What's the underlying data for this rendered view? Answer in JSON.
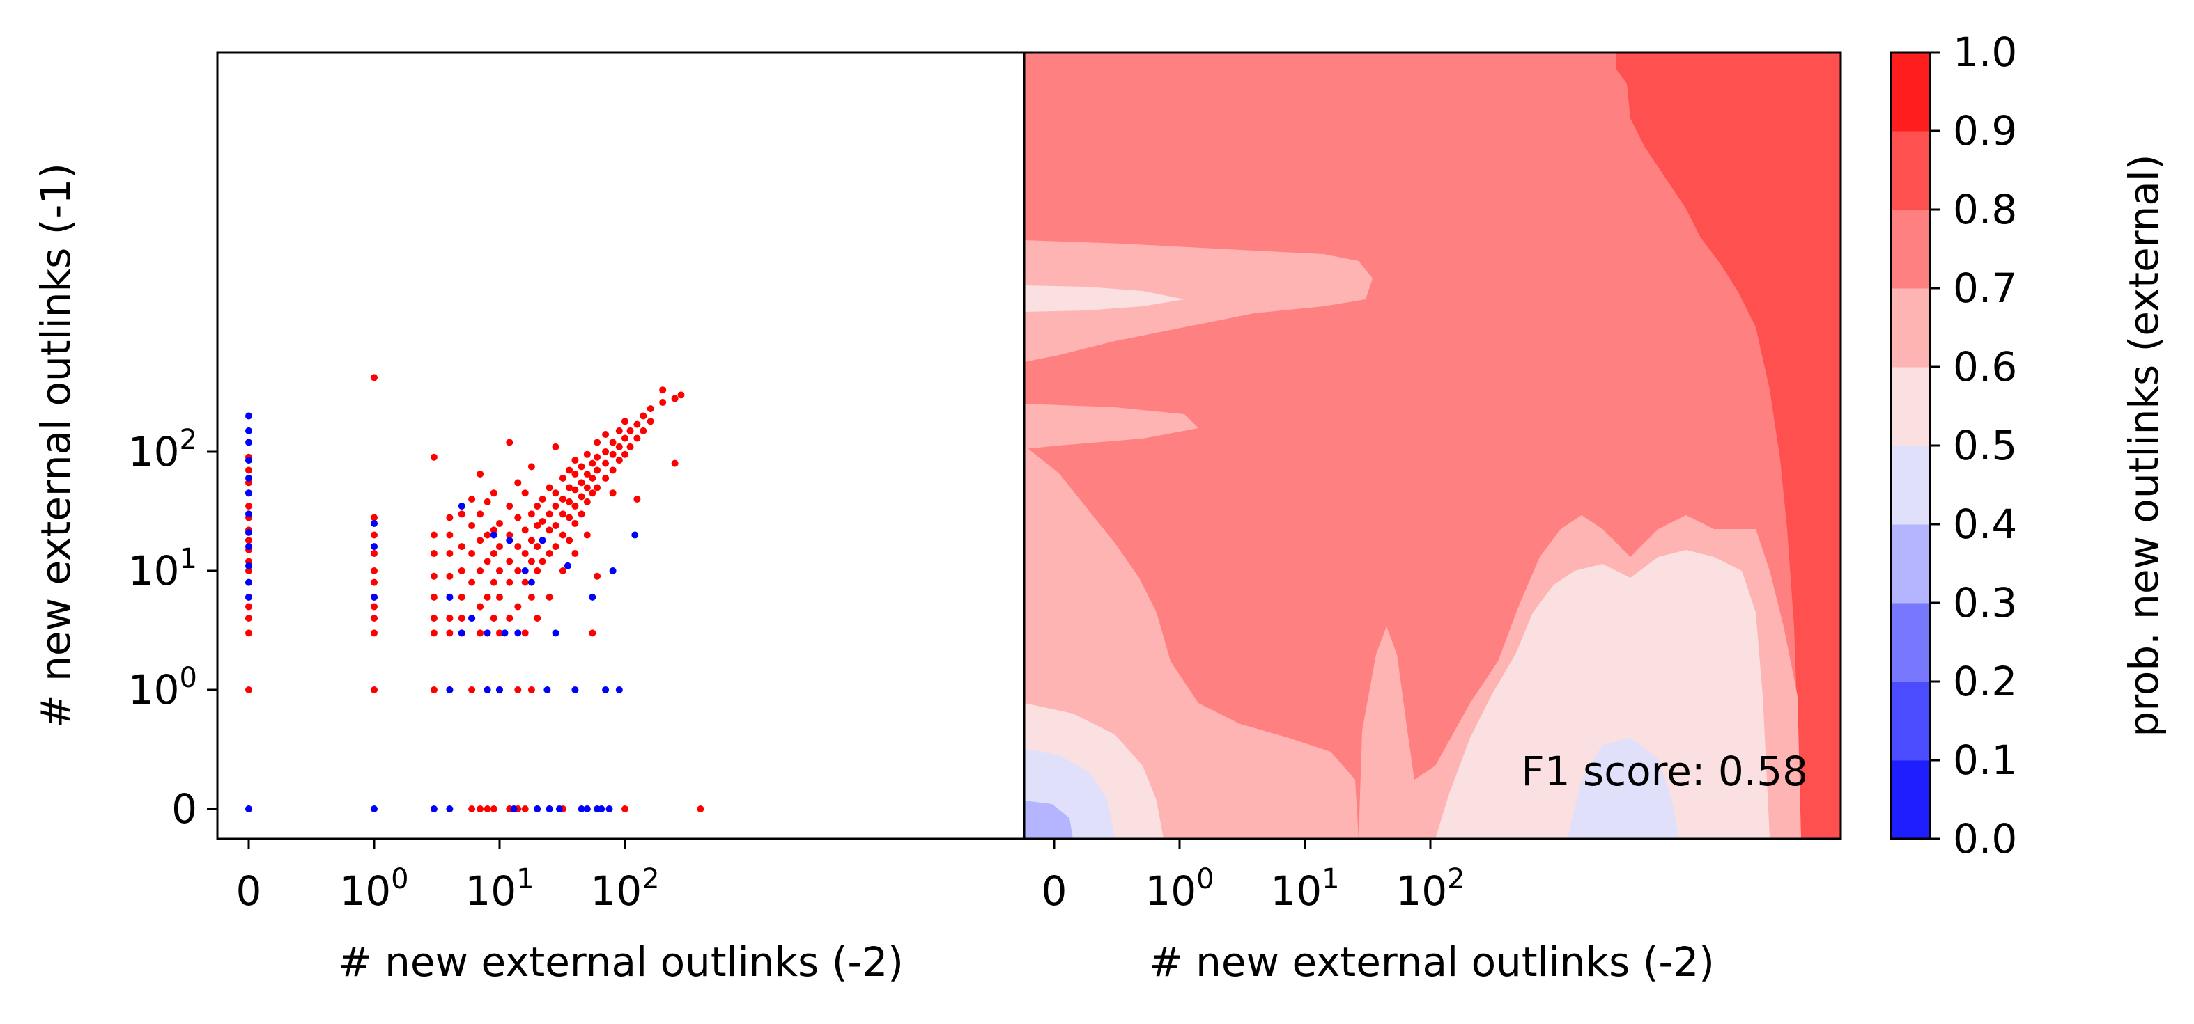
{
  "chart_data": [
    {
      "type": "scatter",
      "panel": "left",
      "xlabel": "# new external outlinks (-2)",
      "ylabel": "# new external outlinks (-1)",
      "x_scale": "symlog",
      "y_scale": "symlog",
      "x_ticks": [
        "0",
        "10^0",
        "10^1",
        "10^2"
      ],
      "y_ticks": [
        "0",
        "10^0",
        "10^1",
        "10^2"
      ],
      "xlim": [
        0,
        500
      ],
      "ylim": [
        0,
        450
      ],
      "grid": false,
      "series": [
        {
          "color": "#ff0000",
          "points": [
            [
              0,
              0
            ],
            [
              0,
              1
            ],
            [
              0,
              3
            ],
            [
              0,
              4
            ],
            [
              0,
              5
            ],
            [
              0,
              6
            ],
            [
              0,
              8
            ],
            [
              0,
              10
            ],
            [
              0,
              12
            ],
            [
              0,
              15
            ],
            [
              0,
              18
            ],
            [
              0,
              22
            ],
            [
              0,
              28
            ],
            [
              0,
              35
            ],
            [
              0,
              45
            ],
            [
              0,
              55
            ],
            [
              0,
              70
            ],
            [
              0,
              90
            ],
            [
              1,
              1
            ],
            [
              1,
              3
            ],
            [
              1,
              4
            ],
            [
              1,
              5
            ],
            [
              1,
              6
            ],
            [
              1,
              8
            ],
            [
              1,
              10
            ],
            [
              1,
              14
            ],
            [
              1,
              20
            ],
            [
              1,
              28
            ],
            [
              1,
              420
            ],
            [
              3,
              1
            ],
            [
              3,
              3
            ],
            [
              3,
              4
            ],
            [
              3,
              6
            ],
            [
              3,
              9
            ],
            [
              3,
              14
            ],
            [
              3,
              20
            ],
            [
              3,
              90
            ],
            [
              4,
              1
            ],
            [
              4,
              3
            ],
            [
              4,
              4
            ],
            [
              4,
              6
            ],
            [
              4,
              9
            ],
            [
              4,
              14
            ],
            [
              4,
              20
            ],
            [
              4,
              28
            ],
            [
              5,
              3
            ],
            [
              5,
              4
            ],
            [
              5,
              6
            ],
            [
              5,
              10
            ],
            [
              5,
              16
            ],
            [
              5,
              30
            ],
            [
              6,
              0
            ],
            [
              6,
              1
            ],
            [
              6,
              4
            ],
            [
              6,
              8
            ],
            [
              6,
              14
            ],
            [
              6,
              24
            ],
            [
              6,
              40
            ],
            [
              7,
              0
            ],
            [
              7,
              3
            ],
            [
              7,
              5
            ],
            [
              7,
              10
            ],
            [
              7,
              18
            ],
            [
              7,
              30
            ],
            [
              7,
              65
            ],
            [
              8,
              0
            ],
            [
              8,
              1
            ],
            [
              8,
              3
            ],
            [
              8,
              6
            ],
            [
              8,
              12
            ],
            [
              8,
              20
            ],
            [
              8,
              38
            ],
            [
              9,
              0
            ],
            [
              9,
              4
            ],
            [
              9,
              8
            ],
            [
              9,
              14
            ],
            [
              9,
              22
            ],
            [
              9,
              45
            ],
            [
              10,
              1
            ],
            [
              10,
              3
            ],
            [
              10,
              6
            ],
            [
              10,
              10
            ],
            [
              10,
              16
            ],
            [
              10,
              25
            ],
            [
              12,
              0
            ],
            [
              12,
              4
            ],
            [
              12,
              8
            ],
            [
              12,
              12
            ],
            [
              12,
              20
            ],
            [
              12,
              35
            ],
            [
              12,
              120
            ],
            [
              14,
              0
            ],
            [
              14,
              1
            ],
            [
              14,
              5
            ],
            [
              14,
              10
            ],
            [
              14,
              16
            ],
            [
              14,
              28
            ],
            [
              14,
              55
            ],
            [
              16,
              0
            ],
            [
              16,
              3
            ],
            [
              16,
              8
            ],
            [
              16,
              14
            ],
            [
              16,
              22
            ],
            [
              16,
              45
            ],
            [
              18,
              1
            ],
            [
              18,
              6
            ],
            [
              18,
              12
            ],
            [
              18,
              18
            ],
            [
              18,
              30
            ],
            [
              18,
              75
            ],
            [
              20,
              0
            ],
            [
              20,
              4
            ],
            [
              20,
              10
            ],
            [
              20,
              16
            ],
            [
              20,
              24
            ],
            [
              20,
              35
            ],
            [
              22,
              12
            ],
            [
              22,
              18
            ],
            [
              22,
              26
            ],
            [
              22,
              40
            ],
            [
              25,
              0
            ],
            [
              25,
              6
            ],
            [
              25,
              14
            ],
            [
              25,
              22
            ],
            [
              25,
              30
            ],
            [
              25,
              50
            ],
            [
              28,
              16
            ],
            [
              28,
              24
            ],
            [
              28,
              35
            ],
            [
              28,
              45
            ],
            [
              28,
              110
            ],
            [
              32,
              0
            ],
            [
              32,
              10
            ],
            [
              32,
              20
            ],
            [
              32,
              30
            ],
            [
              32,
              40
            ],
            [
              32,
              60
            ],
            [
              36,
              18
            ],
            [
              36,
              28
            ],
            [
              36,
              38
            ],
            [
              36,
              50
            ],
            [
              36,
              70
            ],
            [
              40,
              14
            ],
            [
              40,
              25
            ],
            [
              40,
              35
            ],
            [
              40,
              48
            ],
            [
              40,
              65
            ],
            [
              40,
              85
            ],
            [
              45,
              30
            ],
            [
              45,
              42
            ],
            [
              45,
              55
            ],
            [
              45,
              75
            ],
            [
              50,
              0
            ],
            [
              50,
              20
            ],
            [
              50,
              38
            ],
            [
              50,
              50
            ],
            [
              50,
              65
            ],
            [
              50,
              95
            ],
            [
              55,
              3
            ],
            [
              55,
              45
            ],
            [
              55,
              60
            ],
            [
              55,
              80
            ],
            [
              60,
              9
            ],
            [
              60,
              50
            ],
            [
              60,
              70
            ],
            [
              60,
              90
            ],
            [
              60,
              120
            ],
            [
              70,
              60
            ],
            [
              70,
              80
            ],
            [
              70,
              100
            ],
            [
              70,
              140
            ],
            [
              80,
              70
            ],
            [
              80,
              95
            ],
            [
              80,
              120
            ],
            [
              80,
              45
            ],
            [
              90,
              85
            ],
            [
              90,
              110
            ],
            [
              90,
              150
            ],
            [
              100,
              0
            ],
            [
              100,
              95
            ],
            [
              100,
              130
            ],
            [
              100,
              180
            ],
            [
              110,
              110
            ],
            [
              110,
              150
            ],
            [
              125,
              130
            ],
            [
              125,
              170
            ],
            [
              125,
              40
            ],
            [
              140,
              150
            ],
            [
              140,
              200
            ],
            [
              160,
              180
            ],
            [
              160,
              230
            ],
            [
              200,
              260
            ],
            [
              200,
              330
            ],
            [
              250,
              280
            ],
            [
              250,
              80
            ],
            [
              280,
              300
            ],
            [
              400,
              0
            ]
          ]
        },
        {
          "color": "#0000ff",
          "points": [
            [
              0,
              0
            ],
            [
              0,
              6
            ],
            [
              0,
              8
            ],
            [
              0,
              11
            ],
            [
              0,
              16
            ],
            [
              0,
              21
            ],
            [
              0,
              30
            ],
            [
              0,
              45
            ],
            [
              0,
              60
            ],
            [
              0,
              85
            ],
            [
              0,
              120
            ],
            [
              0,
              150
            ],
            [
              0,
              200
            ],
            [
              1,
              0
            ],
            [
              1,
              6
            ],
            [
              1,
              16
            ],
            [
              1,
              25
            ],
            [
              3,
              0
            ],
            [
              4,
              0
            ],
            [
              4,
              1
            ],
            [
              4,
              6
            ],
            [
              5,
              3
            ],
            [
              5,
              35
            ],
            [
              6,
              4
            ],
            [
              8,
              1
            ],
            [
              8,
              3
            ],
            [
              9,
              20
            ],
            [
              10,
              1
            ],
            [
              11,
              3
            ],
            [
              12,
              18
            ],
            [
              13,
              0
            ],
            [
              14,
              3
            ],
            [
              16,
              10
            ],
            [
              18,
              8
            ],
            [
              20,
              0
            ],
            [
              22,
              18
            ],
            [
              24,
              1
            ],
            [
              25,
              0
            ],
            [
              28,
              3
            ],
            [
              30,
              0
            ],
            [
              35,
              11
            ],
            [
              40,
              1
            ],
            [
              45,
              0
            ],
            [
              50,
              0
            ],
            [
              55,
              6
            ],
            [
              60,
              0
            ],
            [
              65,
              0
            ],
            [
              70,
              1
            ],
            [
              75,
              0
            ],
            [
              80,
              10
            ],
            [
              90,
              1
            ],
            [
              120,
              20
            ]
          ]
        }
      ]
    },
    {
      "type": "heatmap",
      "panel": "right",
      "xlabel": "# new external outlinks (-2)",
      "x_scale": "symlog",
      "x_ticks": [
        "0",
        "10^0",
        "10^1",
        "10^2"
      ],
      "xlim": [
        0,
        500
      ],
      "annotation": "F1 score: 0.58",
      "colorbar": {
        "label": "prob. new outlinks (external)",
        "ticks": [
          "0.0",
          "0.1",
          "0.2",
          "0.3",
          "0.4",
          "0.5",
          "0.6",
          "0.7",
          "0.8",
          "0.9",
          "1.0"
        ],
        "levels": [
          {
            "range": [
              0.0,
              0.1
            ],
            "color": "#1e1eff"
          },
          {
            "range": [
              0.1,
              0.2
            ],
            "color": "#4b4bff"
          },
          {
            "range": [
              0.2,
              0.3
            ],
            "color": "#7878ff"
          },
          {
            "range": [
              0.3,
              0.4
            ],
            "color": "#b4b4ff"
          },
          {
            "range": [
              0.4,
              0.5
            ],
            "color": "#e0e0fa"
          },
          {
            "range": [
              0.5,
              0.6
            ],
            "color": "#fae0e0"
          },
          {
            "range": [
              0.6,
              0.7
            ],
            "color": "#ffb4b4"
          },
          {
            "range": [
              0.7,
              0.8
            ],
            "color": "#ff8080"
          },
          {
            "range": [
              0.8,
              0.9
            ],
            "color": "#ff5050"
          },
          {
            "range": [
              0.9,
              1.0
            ],
            "color": "#ff1e1e"
          }
        ]
      }
    }
  ]
}
